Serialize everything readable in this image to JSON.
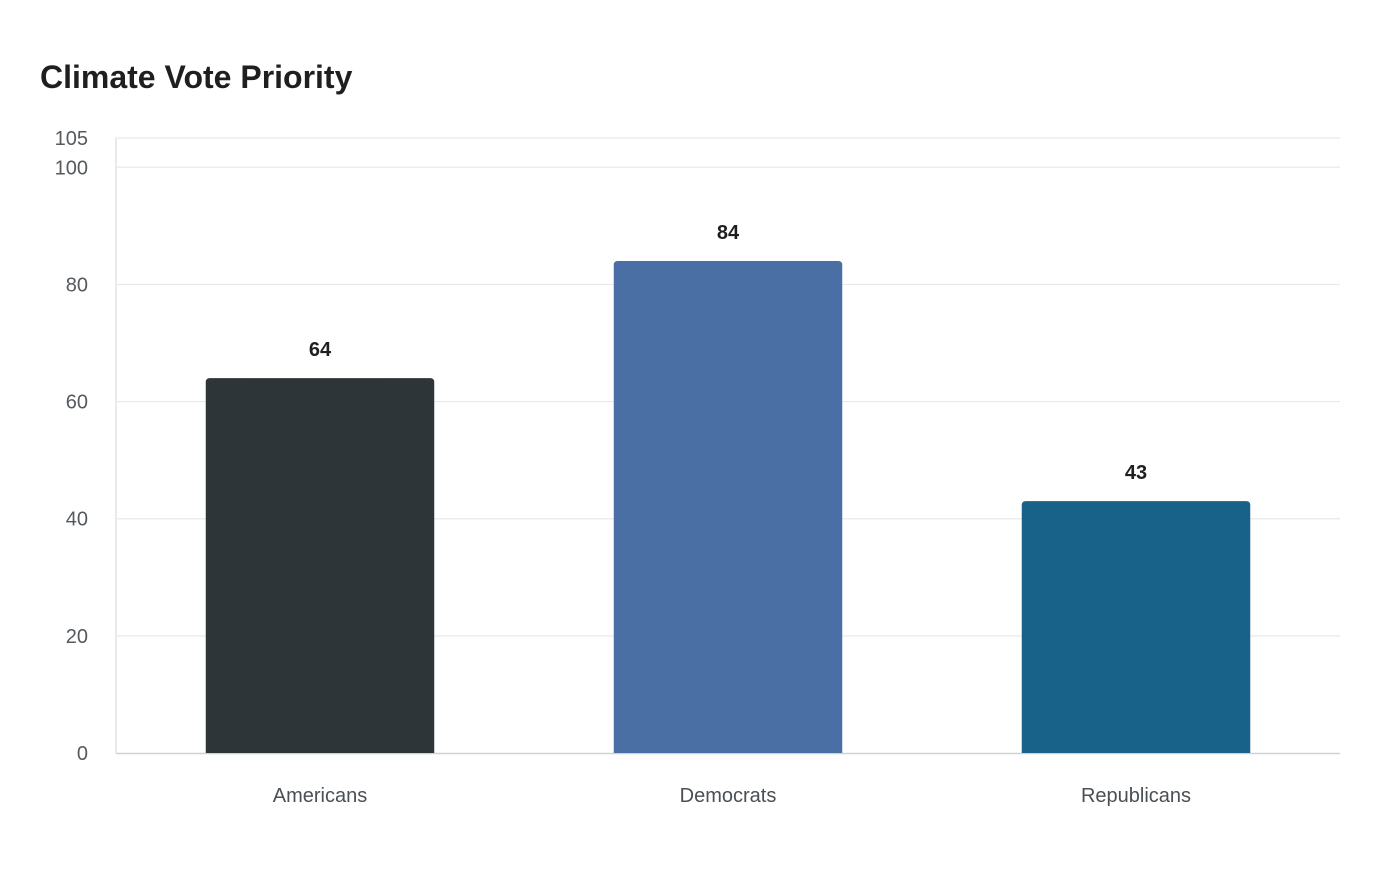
{
  "chart_data": {
    "type": "bar",
    "title": "Climate Vote Priority",
    "categories": [
      "Americans",
      "Democrats",
      "Republicans"
    ],
    "values": [
      64,
      84,
      43
    ],
    "value_labels": [
      "64",
      "84",
      "43"
    ],
    "colors": [
      "#2e3538",
      "#4a6fa5",
      "#186189"
    ],
    "ylim": [
      0,
      105
    ],
    "yticks": [
      0,
      20,
      40,
      60,
      80,
      100,
      105
    ],
    "ytick_labels": [
      "0",
      "20",
      "40",
      "60",
      "80",
      "100",
      "105"
    ],
    "xlabel": "",
    "ylabel": "",
    "grid": true,
    "legend": "none"
  }
}
